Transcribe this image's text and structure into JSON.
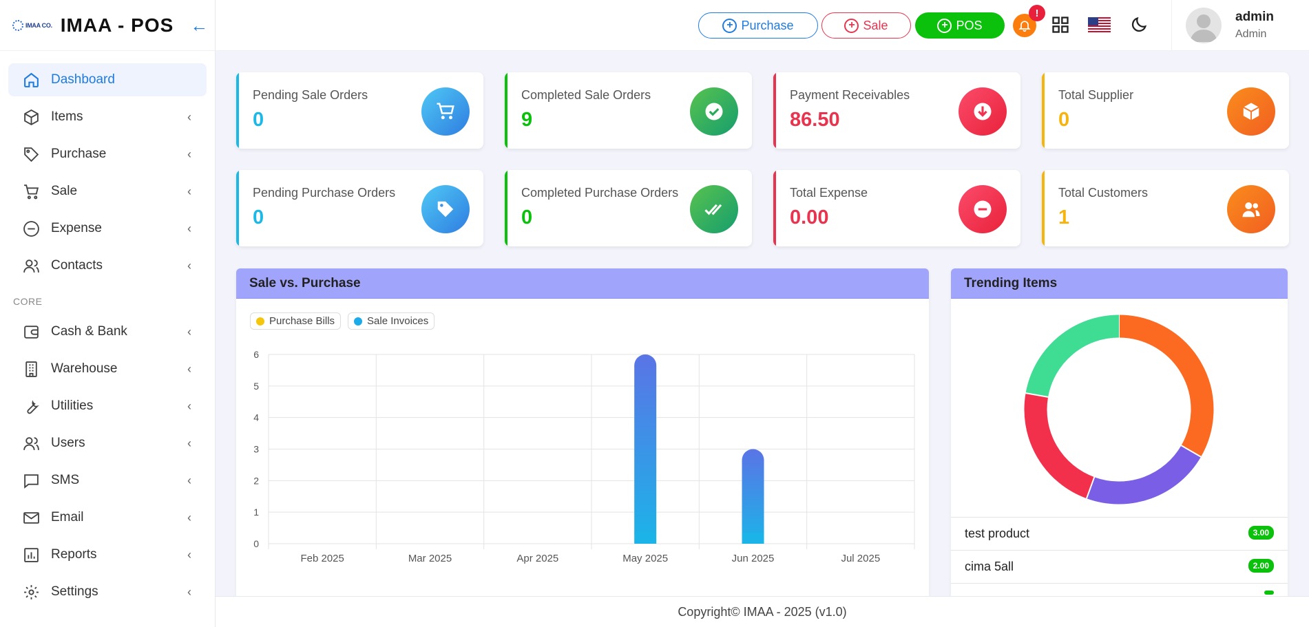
{
  "brand": {
    "logo_text": "IMAA CO.",
    "title": "IMAA - POS"
  },
  "sidebar": {
    "items": [
      {
        "label": "Dashboard",
        "icon": "home-icon"
      },
      {
        "label": "Items",
        "icon": "box-icon"
      },
      {
        "label": "Purchase",
        "icon": "tag-icon"
      },
      {
        "label": "Sale",
        "icon": "cart-icon"
      },
      {
        "label": "Expense",
        "icon": "minus-circle-icon"
      },
      {
        "label": "Contacts",
        "icon": "users-icon"
      }
    ],
    "section_label": "CORE",
    "core_items": [
      {
        "label": "Cash & Bank",
        "icon": "wallet-icon"
      },
      {
        "label": "Warehouse",
        "icon": "building-icon"
      },
      {
        "label": "Utilities",
        "icon": "wrench-icon"
      },
      {
        "label": "Users",
        "icon": "users-icon"
      },
      {
        "label": "SMS",
        "icon": "message-icon"
      },
      {
        "label": "Email",
        "icon": "mail-icon"
      },
      {
        "label": "Reports",
        "icon": "bar-chart-icon"
      },
      {
        "label": "Settings",
        "icon": "gear-icon"
      }
    ]
  },
  "topbar": {
    "purchase_label": "Purchase",
    "sale_label": "Sale",
    "pos_label": "POS",
    "notification_badge": "!",
    "user_name": "admin",
    "user_role": "Admin"
  },
  "cards": [
    {
      "label": "Pending Sale Orders",
      "value": "0",
      "color": "#1cb9e6",
      "icon": "cart-icon"
    },
    {
      "label": "Completed Sale Orders",
      "value": "9",
      "color": "#0cc10c",
      "icon": "check-circle-icon"
    },
    {
      "label": "Payment Receivables",
      "value": "86.50",
      "color": "#e8344e",
      "icon": "arrow-down-circle-icon"
    },
    {
      "label": "Total Supplier",
      "value": "0",
      "color": "#f5b50e",
      "icon": "box-icon"
    },
    {
      "label": "Pending Purchase Orders",
      "value": "0",
      "color": "#1cb9e6",
      "icon": "tag-icon"
    },
    {
      "label": "Completed Purchase Orders",
      "value": "0",
      "color": "#0cc10c",
      "icon": "double-check-icon"
    },
    {
      "label": "Total Expense",
      "value": "0.00",
      "color": "#e8344e",
      "icon": "minus-circle-icon"
    },
    {
      "label": "Total Customers",
      "value": "1",
      "color": "#f5b50e",
      "icon": "users-icon"
    }
  ],
  "sales_panel": {
    "title": "Sale vs. Purchase"
  },
  "chart_data": [
    {
      "type": "bar",
      "title": "Sale vs. Purchase",
      "categories": [
        "Feb 2025",
        "Mar 2025",
        "Apr 2025",
        "May 2025",
        "Jun 2025",
        "Jul 2025"
      ],
      "series": [
        {
          "name": "Purchase Bills",
          "color": "#f5c60e",
          "values": [
            0,
            0,
            0,
            0,
            0,
            0
          ]
        },
        {
          "name": "Sale Invoices",
          "color": "#1cabe9",
          "values": [
            0,
            0,
            0,
            6,
            3,
            0
          ]
        }
      ],
      "yticks": [
        "0",
        "1",
        "2",
        "3",
        "4",
        "5",
        "6"
      ],
      "ylim": [
        0,
        6
      ],
      "grid": true,
      "legend": "top-left"
    },
    {
      "type": "pie",
      "title": "Trending Items",
      "labels": [
        "test product",
        "cima 5all",
        "",
        ""
      ],
      "values": [
        3,
        2,
        2,
        2
      ],
      "colors": [
        "#fc6a22",
        "#7a5fe6",
        "#f3304c",
        "#3fdc94"
      ]
    }
  ],
  "trending_panel": {
    "title": "Trending Items",
    "items": [
      {
        "name": "test product",
        "qty": "3.00"
      },
      {
        "name": "cima 5all",
        "qty": "2.00"
      }
    ]
  },
  "footer": {
    "text": "Copyright© IMAA - 2025 (v1.0)"
  }
}
